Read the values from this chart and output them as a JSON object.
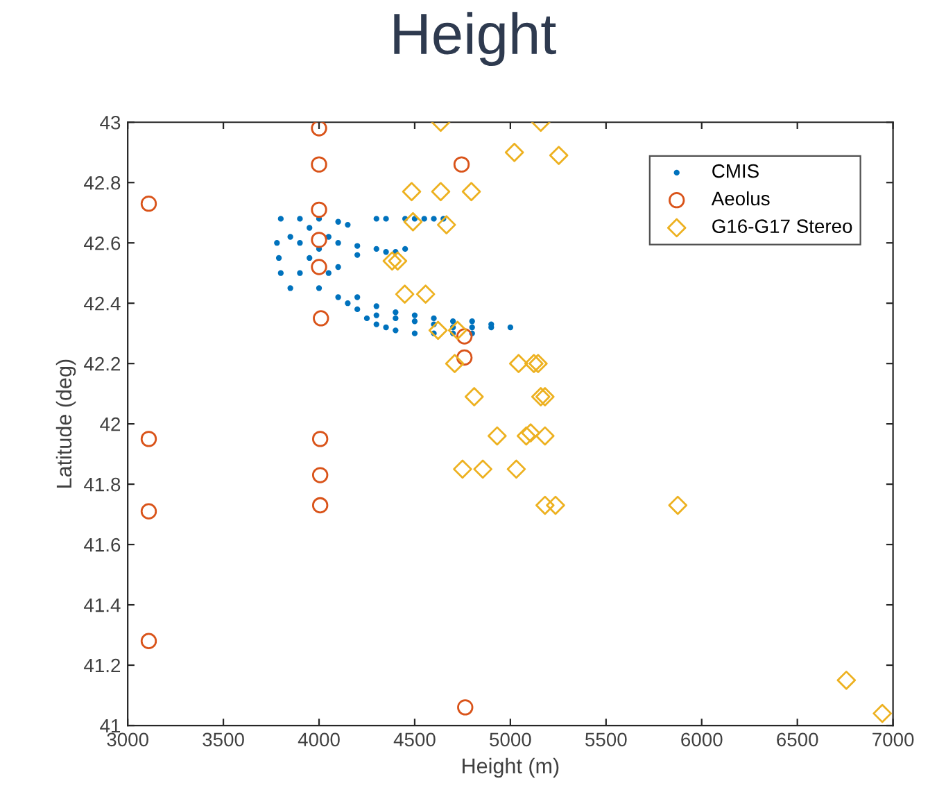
{
  "chart_data": {
    "type": "scatter",
    "title": "Height",
    "xlabel": "Height (m)",
    "ylabel": "Latitude (deg)",
    "xlim": [
      3000,
      7000
    ],
    "xticks": [
      3000,
      3500,
      4000,
      4500,
      5000,
      5500,
      6000,
      6500,
      7000
    ],
    "ylim": [
      41,
      43
    ],
    "yticks": [
      41,
      41.2,
      41.4,
      41.6,
      41.8,
      42,
      42.2,
      42.4,
      42.6,
      42.8,
      43
    ],
    "grid": false,
    "legend": "top right",
    "series": [
      {
        "name": "CMIS",
        "color": "#0072bd",
        "marker": "circle",
        "x": [
          3800,
          3900,
          4000,
          4100,
          4150,
          3780,
          3790,
          3800,
          3850,
          4100,
          4200,
          4300,
          4400,
          4450,
          4200,
          4350,
          3900,
          3950,
          3900,
          4000,
          4050,
          3850,
          3950,
          4050,
          4100,
          4000,
          4100,
          4150,
          4200,
          4300,
          4400,
          4500,
          4600,
          4700,
          4800,
          4900,
          5000,
          4200,
          4300,
          4400,
          4500,
          4600,
          4700,
          4800,
          4900,
          4300,
          4400,
          4500,
          4600,
          4700,
          4800,
          4350,
          4250,
          4450,
          4500,
          4550,
          4600,
          4650,
          4300,
          4350
        ],
        "values": [
          42.68,
          42.68,
          42.68,
          42.67,
          42.66,
          42.6,
          42.55,
          42.5,
          42.45,
          42.6,
          42.59,
          42.58,
          42.57,
          42.58,
          42.56,
          42.57,
          42.6,
          42.55,
          42.5,
          42.58,
          42.62,
          42.62,
          42.65,
          42.5,
          42.52,
          42.45,
          42.42,
          42.4,
          42.38,
          42.36,
          42.35,
          42.34,
          42.33,
          42.32,
          42.32,
          42.32,
          42.32,
          42.42,
          42.39,
          42.37,
          42.36,
          42.35,
          42.34,
          42.34,
          42.33,
          42.33,
          42.31,
          42.3,
          42.3,
          42.3,
          42.3,
          42.32,
          42.35,
          42.68,
          42.68,
          42.68,
          42.68,
          42.68,
          42.68,
          42.68
        ]
      },
      {
        "name": "Aeolus",
        "color": "#d95319",
        "marker": "circle",
        "x": [
          3110,
          4000,
          4000,
          4000,
          4000,
          4000,
          4010,
          4745,
          4760,
          4760,
          3110,
          4006,
          4006,
          4006,
          3110,
          3110,
          4764
        ],
        "values": [
          42.73,
          42.98,
          42.86,
          42.71,
          42.61,
          42.52,
          42.35,
          42.86,
          42.29,
          42.22,
          41.95,
          41.95,
          41.83,
          41.73,
          41.71,
          41.28,
          41.06
        ]
      },
      {
        "name": "G16-G17 Stereo",
        "color": "#edb120",
        "marker": "diamond",
        "x": [
          4636,
          5159,
          5021,
          5253,
          4484,
          4636,
          4796,
          4491,
          4666,
          4382,
          4411,
          4448,
          4557,
          4622,
          4724,
          4709,
          5043,
          5123,
          5145,
          4811,
          5159,
          5181,
          4931,
          5083,
          5106,
          5181,
          4750,
          4856,
          5031,
          5181,
          5236,
          5875,
          6756,
          6944
        ],
        "values": [
          43.0,
          43.0,
          42.9,
          42.89,
          42.77,
          42.77,
          42.77,
          42.67,
          42.66,
          42.54,
          42.54,
          42.43,
          42.43,
          42.31,
          42.31,
          42.2,
          42.2,
          42.2,
          42.2,
          42.09,
          42.09,
          42.09,
          41.96,
          41.96,
          41.97,
          41.96,
          41.85,
          41.85,
          41.85,
          41.73,
          41.73,
          41.73,
          41.15,
          41.04
        ]
      }
    ]
  }
}
